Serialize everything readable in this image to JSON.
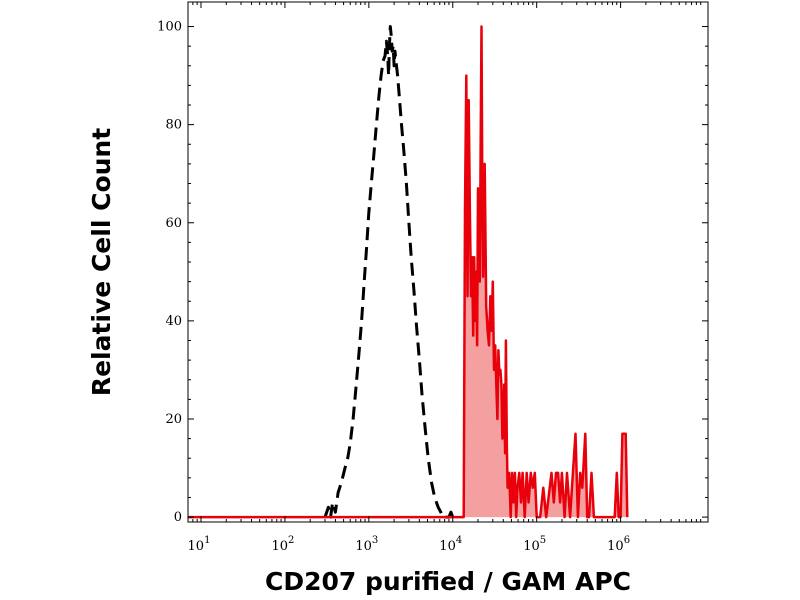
{
  "chart_data": {
    "type": "area",
    "xlabel": "CD207 purified / GAM APC",
    "ylabel": "Relative Cell Count",
    "x_scale": "log",
    "xlim": [
      7,
      11000000
    ],
    "ylim": [
      -1,
      105
    ],
    "x_ticks": [
      {
        "value": 10,
        "base": "10",
        "exp": "1"
      },
      {
        "value": 100,
        "base": "10",
        "exp": "2"
      },
      {
        "value": 1000,
        "base": "10",
        "exp": "3"
      },
      {
        "value": 10000,
        "base": "10",
        "exp": "4"
      },
      {
        "value": 100000,
        "base": "10",
        "exp": "5"
      },
      {
        "value": 1000000,
        "base": "10",
        "exp": "6"
      }
    ],
    "y_ticks": [
      {
        "value": 0,
        "label": "0"
      },
      {
        "value": 20,
        "label": "20"
      },
      {
        "value": 40,
        "label": "40"
      },
      {
        "value": 60,
        "label": "60"
      },
      {
        "value": 80,
        "label": "80"
      },
      {
        "value": 100,
        "label": "100"
      }
    ],
    "grid": false,
    "legend": "none",
    "series": [
      {
        "style": "dashed",
        "color": "#000000",
        "fill": "none",
        "points": [
          [
            300,
            0
          ],
          [
            330,
            2
          ],
          [
            350,
            0
          ],
          [
            370,
            3
          ],
          [
            400,
            1
          ],
          [
            430,
            5
          ],
          [
            470,
            7
          ],
          [
            520,
            10
          ],
          [
            560,
            12
          ],
          [
            600,
            15
          ],
          [
            650,
            20
          ],
          [
            700,
            26
          ],
          [
            760,
            33
          ],
          [
            820,
            40
          ],
          [
            880,
            48
          ],
          [
            940,
            55
          ],
          [
            1000,
            62
          ],
          [
            1070,
            68
          ],
          [
            1150,
            74
          ],
          [
            1230,
            80
          ],
          [
            1320,
            86
          ],
          [
            1400,
            90
          ],
          [
            1480,
            93
          ],
          [
            1560,
            94
          ],
          [
            1620,
            97
          ],
          [
            1680,
            94
          ],
          [
            1720,
            90
          ],
          [
            1760,
            96
          ],
          [
            1800,
            100
          ],
          [
            1850,
            98
          ],
          [
            1900,
            95
          ],
          [
            1950,
            96
          ],
          [
            2000,
            92
          ],
          [
            2050,
            95
          ],
          [
            2100,
            93
          ],
          [
            2200,
            90
          ],
          [
            2300,
            86
          ],
          [
            2450,
            80
          ],
          [
            2600,
            75
          ],
          [
            2800,
            68
          ],
          [
            3000,
            60
          ],
          [
            3200,
            53
          ],
          [
            3450,
            46
          ],
          [
            3700,
            39
          ],
          [
            4000,
            32
          ],
          [
            4300,
            25
          ],
          [
            4700,
            18
          ],
          [
            5100,
            12
          ],
          [
            5600,
            7
          ],
          [
            6100,
            4
          ],
          [
            6700,
            2
          ],
          [
            7200,
            1
          ],
          [
            7600,
            0
          ],
          [
            9000,
            0
          ],
          [
            9500,
            1
          ],
          [
            10000,
            0
          ]
        ]
      },
      {
        "style": "solid",
        "color": "#e8000b",
        "fill": "#f5a0a0",
        "points": [
          [
            7,
            0
          ],
          [
            13000,
            0
          ],
          [
            13500,
            0
          ],
          [
            14000,
            63
          ],
          [
            14500,
            90
          ],
          [
            15000,
            45
          ],
          [
            15500,
            85
          ],
          [
            16000,
            62
          ],
          [
            16500,
            45
          ],
          [
            17000,
            53
          ],
          [
            17500,
            37
          ],
          [
            18000,
            53
          ],
          [
            18500,
            40
          ],
          [
            19000,
            50
          ],
          [
            19500,
            35
          ],
          [
            20000,
            67
          ],
          [
            21000,
            48
          ],
          [
            21500,
            77
          ],
          [
            22000,
            100
          ],
          [
            22500,
            67
          ],
          [
            23000,
            49
          ],
          [
            24000,
            72
          ],
          [
            25000,
            43
          ],
          [
            26000,
            38
          ],
          [
            27000,
            35
          ],
          [
            28000,
            45
          ],
          [
            29000,
            38
          ],
          [
            30000,
            48
          ],
          [
            31000,
            30
          ],
          [
            32000,
            35
          ],
          [
            33000,
            27
          ],
          [
            34000,
            20
          ],
          [
            35000,
            34
          ],
          [
            36000,
            29
          ],
          [
            37000,
            30
          ],
          [
            38000,
            27
          ],
          [
            39000,
            16
          ],
          [
            40000,
            18
          ],
          [
            41000,
            27
          ],
          [
            42000,
            13
          ],
          [
            43000,
            36
          ],
          [
            44000,
            15
          ],
          [
            45000,
            6
          ],
          [
            47000,
            9
          ],
          [
            49000,
            0
          ],
          [
            51000,
            9
          ],
          [
            53000,
            3
          ],
          [
            55000,
            9
          ],
          [
            57000,
            0
          ],
          [
            59000,
            6
          ],
          [
            62000,
            9
          ],
          [
            65000,
            3
          ],
          [
            68000,
            9
          ],
          [
            72000,
            0
          ],
          [
            76000,
            9
          ],
          [
            80000,
            3
          ],
          [
            85000,
            9
          ],
          [
            90000,
            6
          ],
          [
            95000,
            9
          ],
          [
            100000,
            0
          ],
          [
            110000,
            0
          ],
          [
            120000,
            6
          ],
          [
            130000,
            0
          ],
          [
            150000,
            9
          ],
          [
            160000,
            3
          ],
          [
            170000,
            9
          ],
          [
            180000,
            9
          ],
          [
            190000,
            3
          ],
          [
            200000,
            9
          ],
          [
            215000,
            0
          ],
          [
            230000,
            9
          ],
          [
            250000,
            0
          ],
          [
            270000,
            9
          ],
          [
            290000,
            17
          ],
          [
            310000,
            0
          ],
          [
            330000,
            9
          ],
          [
            350000,
            6
          ],
          [
            380000,
            17
          ],
          [
            400000,
            0
          ],
          [
            420000,
            0
          ],
          [
            450000,
            9
          ],
          [
            480000,
            0
          ],
          [
            510000,
            0
          ],
          [
            550000,
            0
          ],
          [
            600000,
            0
          ],
          [
            800000,
            0
          ],
          [
            850000,
            0
          ],
          [
            900000,
            9
          ],
          [
            950000,
            0
          ],
          [
            1000000,
            0
          ],
          [
            1050000,
            17
          ],
          [
            1150000,
            17
          ],
          [
            1200000,
            0
          ]
        ]
      }
    ]
  }
}
